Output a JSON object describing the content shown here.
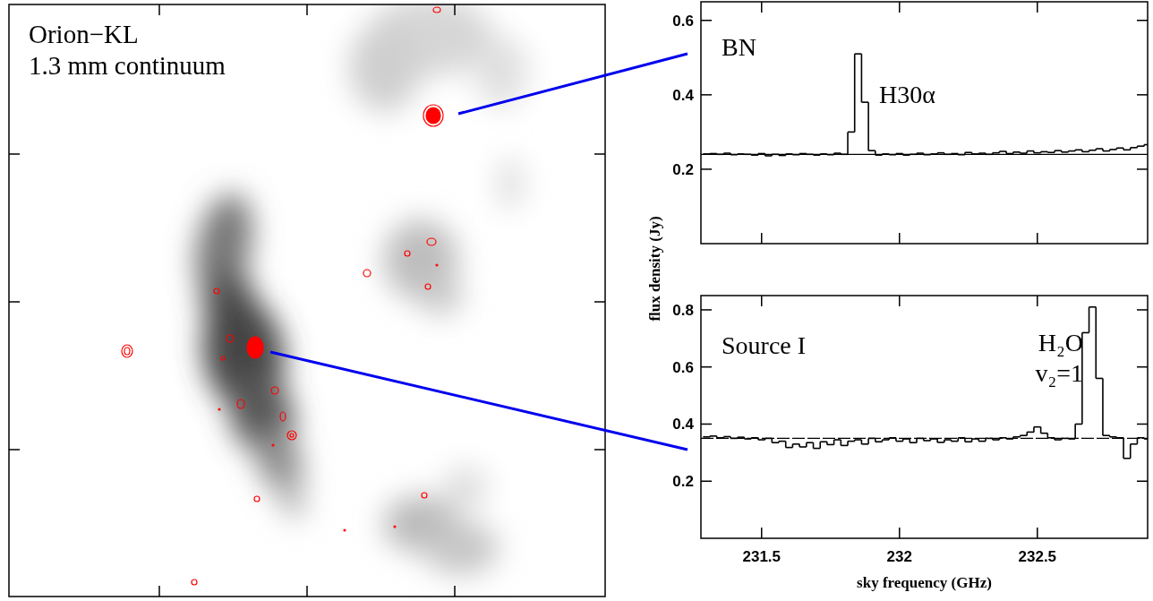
{
  "chart_data": [
    {
      "type": "image",
      "title": "Orion−KL",
      "subtitle": "1.3 mm continuum",
      "tick_labels": false
    },
    {
      "type": "line",
      "title": "BN",
      "annotations": [
        "H30α"
      ],
      "ylabel": "flux density (Jy)",
      "line_style": "steps",
      "color": "#000000",
      "tick_labels": "y",
      "xlim": [
        231.28,
        232.9
      ],
      "xticks": [
        231.5,
        232,
        232.5
      ],
      "ylim": [
        0,
        0.65
      ],
      "yticks": [
        0.2,
        0.4,
        0.6
      ],
      "continuum": 0.24,
      "x": [
        231.3,
        231.325,
        231.35,
        231.375,
        231.4,
        231.425,
        231.45,
        231.475,
        231.5,
        231.525,
        231.55,
        231.575,
        231.6,
        231.625,
        231.65,
        231.675,
        231.7,
        231.725,
        231.75,
        231.775,
        231.8,
        231.825,
        231.85,
        231.875,
        231.9,
        231.925,
        231.95,
        231.975,
        232.0,
        232.025,
        232.05,
        232.075,
        232.1,
        232.125,
        232.15,
        232.175,
        232.2,
        232.225,
        232.25,
        232.275,
        232.3,
        232.325,
        232.35,
        232.375,
        232.4,
        232.425,
        232.45,
        232.475,
        232.5,
        232.525,
        232.55,
        232.575,
        232.6,
        232.625,
        232.65,
        232.675,
        232.7,
        232.725,
        232.75,
        232.775,
        232.8,
        232.825,
        232.85,
        232.875,
        232.9
      ],
      "values": [
        0.241,
        0.242,
        0.24,
        0.243,
        0.239,
        0.241,
        0.24,
        0.238,
        0.242,
        0.236,
        0.24,
        0.237,
        0.241,
        0.239,
        0.242,
        0.24,
        0.238,
        0.241,
        0.239,
        0.243,
        0.24,
        0.3,
        0.51,
        0.38,
        0.25,
        0.238,
        0.241,
        0.239,
        0.242,
        0.238,
        0.24,
        0.243,
        0.239,
        0.241,
        0.244,
        0.24,
        0.242,
        0.239,
        0.245,
        0.241,
        0.243,
        0.24,
        0.244,
        0.248,
        0.242,
        0.246,
        0.243,
        0.249,
        0.244,
        0.247,
        0.245,
        0.25,
        0.246,
        0.249,
        0.252,
        0.247,
        0.251,
        0.255,
        0.249,
        0.253,
        0.257,
        0.252,
        0.258,
        0.262,
        0.266
      ]
    },
    {
      "type": "line",
      "title": "Source I",
      "annotations": [
        "H₂O",
        "v₂=1"
      ],
      "xlabel": "sky frequency (GHz)",
      "line_style": "steps",
      "color": "#000000",
      "tick_labels": true,
      "xlim": [
        231.28,
        232.9
      ],
      "xticks": [
        231.5,
        232,
        232.5
      ],
      "ylim": [
        0,
        0.85
      ],
      "yticks": [
        0.2,
        0.4,
        0.6,
        0.8
      ],
      "continuum": 0.35,
      "x": [
        231.3,
        231.325,
        231.35,
        231.375,
        231.4,
        231.425,
        231.45,
        231.475,
        231.5,
        231.525,
        231.55,
        231.575,
        231.6,
        231.625,
        231.65,
        231.675,
        231.7,
        231.725,
        231.75,
        231.775,
        231.8,
        231.825,
        231.85,
        231.875,
        231.9,
        231.925,
        231.95,
        231.975,
        232.0,
        232.025,
        232.05,
        232.075,
        232.1,
        232.125,
        232.15,
        232.175,
        232.2,
        232.225,
        232.25,
        232.275,
        232.3,
        232.325,
        232.35,
        232.375,
        232.4,
        232.425,
        232.45,
        232.475,
        232.5,
        232.525,
        232.55,
        232.575,
        232.6,
        232.625,
        232.65,
        232.675,
        232.7,
        232.725,
        232.75,
        232.775,
        232.8,
        232.825,
        232.85,
        232.875,
        232.9
      ],
      "values": [
        0.355,
        0.358,
        0.352,
        0.356,
        0.35,
        0.354,
        0.348,
        0.352,
        0.345,
        0.35,
        0.335,
        0.34,
        0.318,
        0.33,
        0.32,
        0.335,
        0.315,
        0.338,
        0.328,
        0.345,
        0.325,
        0.34,
        0.345,
        0.33,
        0.35,
        0.338,
        0.345,
        0.352,
        0.34,
        0.348,
        0.335,
        0.35,
        0.342,
        0.348,
        0.336,
        0.345,
        0.34,
        0.352,
        0.338,
        0.348,
        0.34,
        0.35,
        0.345,
        0.352,
        0.348,
        0.355,
        0.36,
        0.372,
        0.39,
        0.368,
        0.352,
        0.345,
        0.35,
        0.348,
        0.4,
        0.72,
        0.81,
        0.56,
        0.36,
        0.355,
        0.352,
        0.28,
        0.33,
        0.352,
        0.348
      ]
    }
  ]
}
